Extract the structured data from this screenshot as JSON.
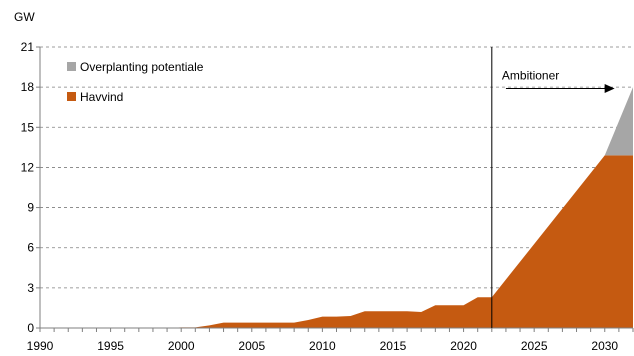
{
  "chart_data": {
    "type": "area",
    "stacked": true,
    "ylabel": "GW",
    "ylim": [
      0,
      21
    ],
    "xlim": [
      1990,
      2032
    ],
    "yticks": [
      0,
      3,
      6,
      9,
      12,
      15,
      18,
      21
    ],
    "xticks": [
      1990,
      1995,
      2000,
      2005,
      2010,
      2015,
      2020,
      2025,
      2030
    ],
    "grid": "horizontal-dashed",
    "legend_position": "top-left",
    "colors": {
      "havvind": "#C55A11",
      "overplanting": "#A6A6A6"
    },
    "series": [
      {
        "name": "Havvind",
        "points": [
          [
            1990,
            0
          ],
          [
            1991,
            0
          ],
          [
            1992,
            0
          ],
          [
            1993,
            0
          ],
          [
            1994,
            0
          ],
          [
            1995,
            0
          ],
          [
            1996,
            0
          ],
          [
            1997,
            0
          ],
          [
            1998,
            0
          ],
          [
            1999,
            0
          ],
          [
            2000,
            0.05
          ],
          [
            2001,
            0.05
          ],
          [
            2002,
            0.2
          ],
          [
            2003,
            0.4
          ],
          [
            2004,
            0.4
          ],
          [
            2005,
            0.4
          ],
          [
            2006,
            0.4
          ],
          [
            2007,
            0.4
          ],
          [
            2008,
            0.4
          ],
          [
            2009,
            0.6
          ],
          [
            2010,
            0.85
          ],
          [
            2011,
            0.85
          ],
          [
            2012,
            0.9
          ],
          [
            2013,
            1.25
          ],
          [
            2014,
            1.25
          ],
          [
            2015,
            1.25
          ],
          [
            2016,
            1.25
          ],
          [
            2017,
            1.2
          ],
          [
            2018,
            1.7
          ],
          [
            2019,
            1.7
          ],
          [
            2020,
            1.7
          ],
          [
            2021,
            2.3
          ],
          [
            2022,
            2.3
          ],
          [
            2030,
            12.9
          ],
          [
            2032,
            12.9
          ]
        ]
      },
      {
        "name": "Overplanting potentiale",
        "points": [
          [
            2029.9,
            0
          ],
          [
            2030,
            0
          ],
          [
            2032,
            5.1
          ]
        ]
      }
    ],
    "annotations": {
      "vline_x": 2022,
      "ambitioner_label": "Ambitioner",
      "arrow_from_x": 2023,
      "arrow_to_x": 2030.7,
      "arrow_y": 17.9
    }
  }
}
